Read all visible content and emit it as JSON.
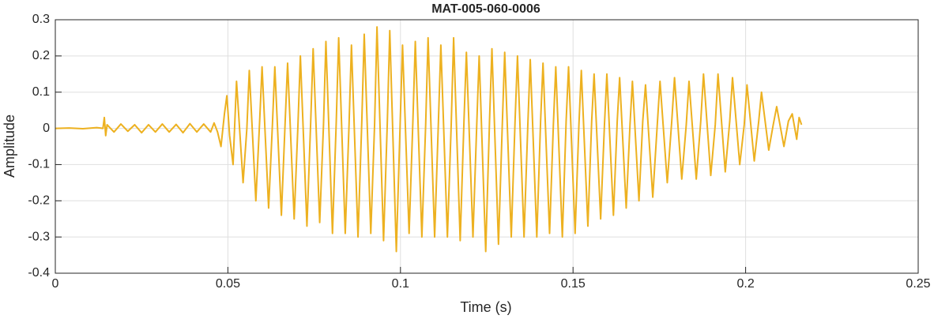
{
  "chart_data": {
    "type": "line",
    "title": "MAT-005-060-0006",
    "x_label": "Time (s)",
    "y_label": "Amplitude",
    "color": "#edb120",
    "grid": true,
    "xlim": [
      0,
      0.25
    ],
    "xticks": [
      0,
      0.05,
      0.1,
      0.15,
      0.2,
      0.25
    ],
    "ylim": [
      -0.4,
      0.3
    ],
    "yticks": [
      -0.4,
      -0.3,
      -0.2,
      -0.1,
      0,
      0.1,
      0.2,
      0.3
    ],
    "x": [
      0,
      0.004,
      0.008,
      0.012,
      0.0138,
      0.0142,
      0.0146,
      0.015,
      0.017,
      0.019,
      0.021,
      0.023,
      0.025,
      0.027,
      0.029,
      0.031,
      0.033,
      0.035,
      0.037,
      0.039,
      0.041,
      0.043,
      0.045,
      0.046,
      0.047,
      0.048,
      0.049,
      0.0497,
      0.0505,
      0.0515,
      0.0525,
      0.0544,
      0.0555,
      0.0562,
      0.0581,
      0.0592,
      0.0599,
      0.0618,
      0.0629,
      0.0636,
      0.0655,
      0.0666,
      0.0673,
      0.0692,
      0.0703,
      0.071,
      0.0729,
      0.074,
      0.0747,
      0.0766,
      0.0777,
      0.0784,
      0.0803,
      0.0814,
      0.0821,
      0.084,
      0.0851,
      0.0858,
      0.0877,
      0.0888,
      0.0895,
      0.0914,
      0.0925,
      0.0932,
      0.0951,
      0.0962,
      0.0969,
      0.0988,
      0.0999,
      0.1006,
      0.1025,
      0.1036,
      0.1043,
      0.1062,
      0.1073,
      0.108,
      0.1099,
      0.111,
      0.1117,
      0.1136,
      0.1147,
      0.1154,
      0.1173,
      0.1184,
      0.1191,
      0.121,
      0.1221,
      0.1228,
      0.1247,
      0.1258,
      0.1265,
      0.1284,
      0.1295,
      0.1302,
      0.1321,
      0.1332,
      0.1339,
      0.1358,
      0.1369,
      0.1376,
      0.1395,
      0.1406,
      0.1413,
      0.1432,
      0.1443,
      0.145,
      0.1469,
      0.148,
      0.1487,
      0.1506,
      0.1517,
      0.1524,
      0.1543,
      0.1554,
      0.1561,
      0.158,
      0.1591,
      0.1598,
      0.1617,
      0.1628,
      0.1635,
      0.1654,
      0.1665,
      0.1672,
      0.1691,
      0.1702,
      0.171,
      0.1731,
      0.1744,
      0.1752,
      0.1773,
      0.1786,
      0.1794,
      0.1815,
      0.1828,
      0.1836,
      0.1857,
      0.187,
      0.1878,
      0.1899,
      0.1912,
      0.192,
      0.1941,
      0.1954,
      0.1962,
      0.1983,
      0.1996,
      0.2004,
      0.2025,
      0.2038,
      0.2046,
      0.2067,
      0.208,
      0.209,
      0.2111,
      0.2124,
      0.2135,
      0.2148,
      0.2155,
      0.2162
    ],
    "values": [
      0,
      0.001,
      -0.001,
      0.002,
      0,
      0.03,
      -0.02,
      0.01,
      -0.01,
      0.012,
      -0.008,
      0.01,
      -0.012,
      0.01,
      -0.01,
      0.012,
      -0.01,
      0.011,
      -0.012,
      0.013,
      -0.01,
      0.012,
      -0.01,
      0.015,
      -0.01,
      -0.05,
      0.04,
      0.09,
      -0.02,
      -0.1,
      0.13,
      -0.15,
      0,
      0.16,
      -0.2,
      0.02,
      0.17,
      -0.22,
      0.01,
      0.17,
      -0.24,
      0.02,
      0.18,
      -0.25,
      0.01,
      0.2,
      -0.27,
      0.02,
      0.22,
      -0.26,
      0.01,
      0.24,
      -0.29,
      0.02,
      0.25,
      -0.29,
      0.01,
      0.23,
      -0.3,
      0.02,
      0.26,
      -0.29,
      0.01,
      0.28,
      -0.31,
      0.02,
      0.27,
      -0.34,
      0.01,
      0.23,
      -0.29,
      0.02,
      0.24,
      -0.3,
      0.01,
      0.25,
      -0.3,
      0.02,
      0.23,
      -0.3,
      0.01,
      0.25,
      -0.31,
      0.02,
      0.21,
      -0.3,
      0.01,
      0.2,
      -0.34,
      0.02,
      0.22,
      -0.32,
      0.01,
      0.21,
      -0.3,
      0.02,
      0.2,
      -0.3,
      0.01,
      0.19,
      -0.3,
      0.02,
      0.18,
      -0.29,
      0.01,
      0.17,
      -0.3,
      0.02,
      0.17,
      -0.29,
      0.01,
      0.16,
      -0.27,
      0.02,
      0.15,
      -0.25,
      0.01,
      0.15,
      -0.24,
      0.02,
      0.14,
      -0.22,
      0.01,
      0.13,
      -0.2,
      0.02,
      0.12,
      -0.19,
      0.01,
      0.13,
      -0.15,
      0.02,
      0.14,
      -0.14,
      0.01,
      0.13,
      -0.14,
      0.02,
      0.15,
      -0.13,
      0.01,
      0.15,
      -0.12,
      0.02,
      0.14,
      -0.1,
      0.01,
      0.12,
      -0.09,
      0.02,
      0.1,
      -0.06,
      0.01,
      0.06,
      -0.05,
      0.02,
      0.04,
      -0.03,
      0.03,
      0.01
    ]
  }
}
